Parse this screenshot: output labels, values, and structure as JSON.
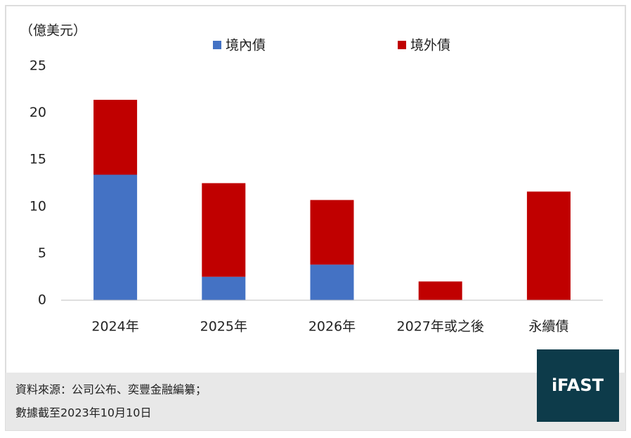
{
  "chart_data": {
    "type": "stacked_bar",
    "y_label": "（億美元）",
    "categories": [
      "2024年",
      "2025年",
      "2026年",
      "2027年或之後",
      "永續債"
    ],
    "series": [
      {
        "name": "境內債",
        "color": "#4472c4",
        "values": [
          13.4,
          2.5,
          3.8,
          0,
          0
        ]
      },
      {
        "name": "境外債",
        "color": "#c00000",
        "values": [
          8.0,
          10.0,
          6.9,
          2.0,
          11.6
        ]
      }
    ],
    "ylim": [
      0,
      25
    ],
    "yticks": [
      0,
      5,
      10,
      15,
      20,
      25
    ],
    "grid": false
  },
  "footer": {
    "source": "資料來源：公司公布、奕豐金融編纂；",
    "note": "數據截至2023年10月10日",
    "logo": "iFAST"
  }
}
